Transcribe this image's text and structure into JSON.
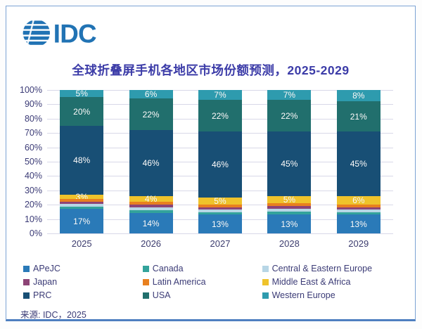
{
  "logo": {
    "text": "IDC",
    "color": "#2173b4"
  },
  "title": "全球折叠屏手机各地区市场份额预测，2025-2029",
  "source": "来源: IDC，2025",
  "colors": {
    "title_text": "#3c3ca8",
    "axis_text": "#3b3b76",
    "gridline": "#d8d8e8",
    "card_border": "#7ca3d4",
    "bar_label": "#ffffff"
  },
  "chart_data": {
    "type": "bar",
    "stacked": true,
    "title": "全球折叠屏手机各地区市场份额预测，2025-2029",
    "categories": [
      "2025",
      "2026",
      "2027",
      "2028",
      "2029"
    ],
    "y_axis": {
      "min": 0,
      "max": 100,
      "step": 10,
      "tick_suffix": "%"
    },
    "grid": true,
    "legend_position": "bottom",
    "legend_columns": 3,
    "note": "unlabeled thin segments (Canada, Central & Eastern Europe, Japan, Latin America) are estimated ~2% each so stacks total 100%",
    "series": [
      {
        "name": "APeJC",
        "color": "#2a7ab8",
        "values": [
          17,
          14,
          13,
          13,
          13
        ],
        "labels": [
          "17%",
          "14%",
          "13%",
          "13%",
          "13%"
        ]
      },
      {
        "name": "Canada",
        "color": "#33a39b",
        "values": [
          1.75,
          2,
          1.75,
          2,
          1.75
        ],
        "labels": [
          "",
          "",
          "",
          "",
          ""
        ]
      },
      {
        "name": "Central & Eastern Europe",
        "color": "#b7d6e6",
        "values": [
          1.75,
          2,
          1.75,
          2,
          1.75
        ],
        "labels": [
          "",
          "",
          "",
          "",
          ""
        ]
      },
      {
        "name": "Japan",
        "color": "#8d4476",
        "values": [
          1.75,
          2,
          1.75,
          2,
          1.75
        ],
        "labels": [
          "",
          "",
          "",
          "",
          ""
        ]
      },
      {
        "name": "Latin America",
        "color": "#e8801f",
        "values": [
          1.75,
          2,
          1.75,
          2,
          1.75
        ],
        "labels": [
          "",
          "",
          "",
          "",
          ""
        ]
      },
      {
        "name": "Middle East & Africa",
        "color": "#efc32b",
        "values": [
          3,
          4,
          5,
          5,
          6
        ],
        "labels": [
          "3%",
          "4%",
          "5%",
          "5%",
          "6%"
        ]
      },
      {
        "name": "PRC",
        "color": "#184f75",
        "values": [
          48,
          46,
          46,
          45,
          45
        ],
        "labels": [
          "48%",
          "46%",
          "46%",
          "45%",
          "45%"
        ]
      },
      {
        "name": "USA",
        "color": "#216f6d",
        "values": [
          20,
          22,
          22,
          22,
          21
        ],
        "labels": [
          "20%",
          "22%",
          "22%",
          "22%",
          "21%"
        ]
      },
      {
        "name": "Western Europe",
        "color": "#2e9bae",
        "values": [
          5,
          6,
          7,
          7,
          8
        ],
        "labels": [
          "5%",
          "6%",
          "7%",
          "7%",
          "8%"
        ]
      }
    ]
  }
}
